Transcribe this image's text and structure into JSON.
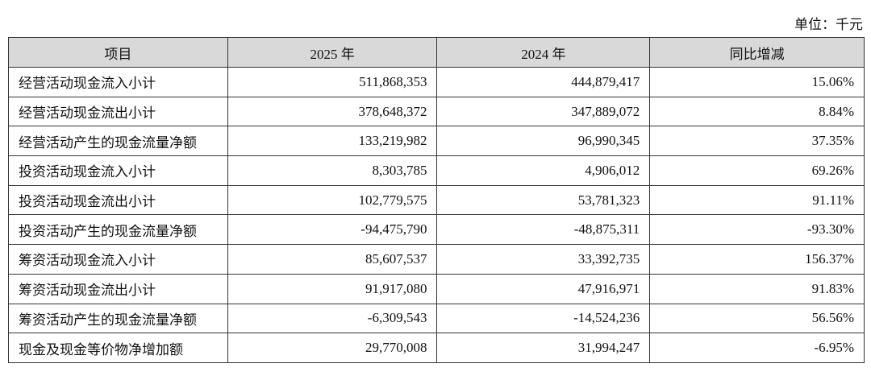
{
  "unit": "单位：千元",
  "table": {
    "header": [
      "项目",
      "2025 年",
      "2024 年",
      "同比增减"
    ],
    "rows": [
      [
        "经营活动现金流入小计",
        "511,868,353",
        "444,879,417",
        "15.06%"
      ],
      [
        "经营活动现金流出小计",
        "378,648,372",
        "347,889,072",
        "8.84%"
      ],
      [
        "经营活动产生的现金流量净额",
        "133,219,982",
        "96,990,345",
        "37.35%"
      ],
      [
        "投资活动现金流入小计",
        "8,303,785",
        "4,906,012",
        "69.26%"
      ],
      [
        "投资活动现金流出小计",
        "102,779,575",
        "53,781,323",
        "91.11%"
      ],
      [
        "投资活动产生的现金流量净额",
        "-94,475,790",
        "-48,875,311",
        "-93.30%"
      ],
      [
        "筹资活动现金流入小计",
        "85,607,537",
        "33,392,735",
        "156.37%"
      ],
      [
        "筹资活动现金流出小计",
        "91,917,080",
        "47,916,971",
        "91.83%"
      ],
      [
        "筹资活动产生的现金流量净额",
        "-6,309,543",
        "-14,524,236",
        "56.56%"
      ],
      [
        "现金及现金等价物净增加额",
        "29,770,008",
        "31,994,247",
        "-6.95%"
      ]
    ]
  }
}
